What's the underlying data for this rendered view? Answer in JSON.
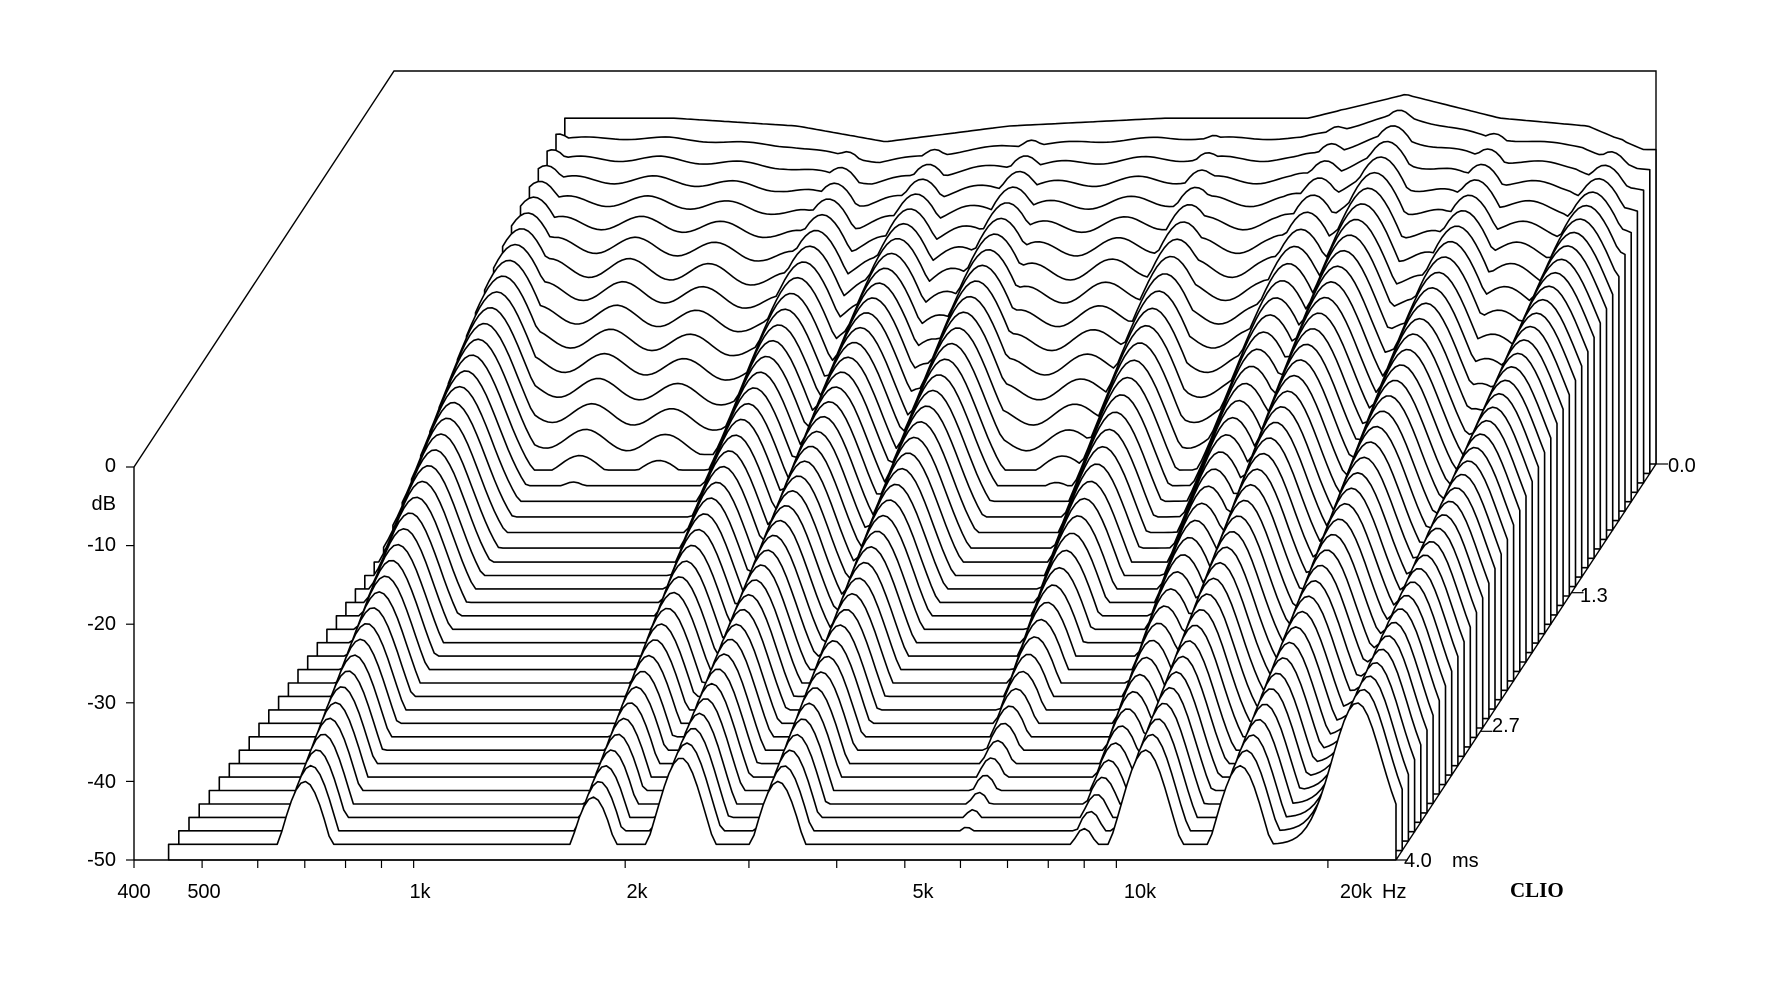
{
  "chart_data": {
    "type": "waterfall",
    "title": "",
    "brand": "CLIO",
    "z_axis": {
      "label": "dB",
      "range": [
        -50,
        0
      ],
      "ticks": [
        {
          "value": 0,
          "label": "0"
        },
        {
          "value": -10,
          "label": "-10"
        },
        {
          "value": -20,
          "label": "-20"
        },
        {
          "value": -30,
          "label": "-30"
        },
        {
          "value": -40,
          "label": "-40"
        },
        {
          "value": -50,
          "label": "-50"
        }
      ]
    },
    "x_axis": {
      "unit": "Hz",
      "scale": "log",
      "range": [
        400,
        25000
      ],
      "ticks": [
        {
          "value": 400,
          "label": "400"
        },
        {
          "value": 500,
          "label": "500"
        },
        {
          "value": 1000,
          "label": "1k"
        },
        {
          "value": 2000,
          "label": "2k"
        },
        {
          "value": 5000,
          "label": "5k"
        },
        {
          "value": 10000,
          "label": "10k"
        },
        {
          "value": 20000,
          "label": "20k"
        }
      ],
      "minor_ticks": [
        600,
        700,
        800,
        900,
        3000,
        4000,
        6000,
        7000,
        8000,
        9000
      ]
    },
    "time_axis": {
      "unit": "ms",
      "range": [
        0,
        4.0
      ],
      "ticks": [
        {
          "value": 0.0,
          "label": "0.0"
        },
        {
          "value": 1.3,
          "label": "1.3"
        },
        {
          "value": 2.7,
          "label": "2.7"
        },
        {
          "value": 4.0,
          "label": "4.0"
        }
      ]
    },
    "slice_count": 43,
    "decay_shape": {
      "first_slice_db": [
        {
          "f": 700,
          "db": -6
        },
        {
          "f": 1000,
          "db": -6
        },
        {
          "f": 1500,
          "db": -7
        },
        {
          "f": 2000,
          "db": -9
        },
        {
          "f": 3000,
          "db": -7
        },
        {
          "f": 5000,
          "db": -6
        },
        {
          "f": 8000,
          "db": -6
        },
        {
          "f": 11000,
          "db": -3
        },
        {
          "f": 15000,
          "db": -6
        },
        {
          "f": 20000,
          "db": -7
        },
        {
          "f": 24000,
          "db": -10
        }
      ],
      "resonances": [
        {
          "f": 700,
          "db_at_4ms": -40
        },
        {
          "f": 1800,
          "db_at_4ms": -42
        },
        {
          "f": 2400,
          "db_at_4ms": -37
        },
        {
          "f": 3300,
          "db_at_4ms": -40
        },
        {
          "f": 6000,
          "db_at_4ms": -48
        },
        {
          "f": 9000,
          "db_at_4ms": -46
        },
        {
          "f": 11000,
          "db_at_4ms": -36
        },
        {
          "f": 15000,
          "db_at_4ms": -38
        },
        {
          "f": 22000,
          "db_at_4ms": -30
        }
      ]
    }
  }
}
